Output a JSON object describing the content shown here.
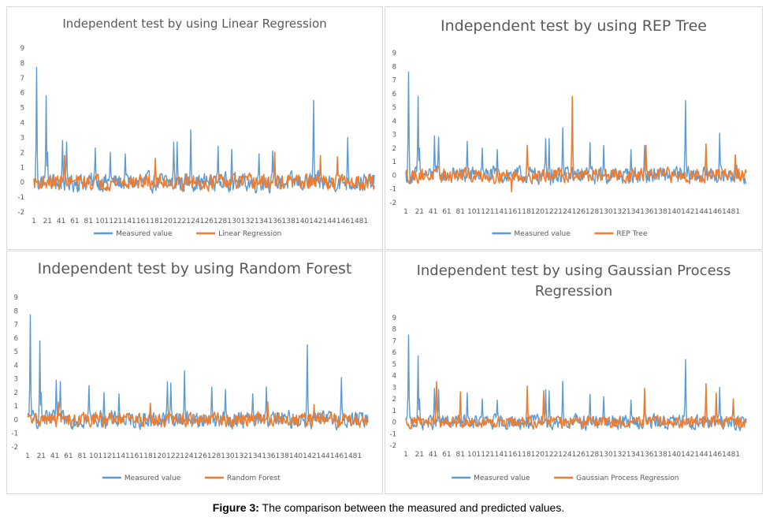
{
  "figure_caption": {
    "label": "Figure 3:",
    "text": " The comparison between the measured and predicted values."
  },
  "colors": {
    "measured": "#5B9BD5",
    "predicted": "#ED7D31"
  },
  "chart_data": [
    {
      "type": "line",
      "title": "Independent test by using Linear Regression",
      "ylim": [
        -2,
        9
      ],
      "yticks": [
        "-2",
        "-1",
        "0",
        "1",
        "2",
        "3",
        "4",
        "5",
        "6",
        "7",
        "8",
        "9"
      ],
      "xticks": [
        "1",
        "21",
        "41",
        "61",
        "81",
        "101",
        "121",
        "141",
        "161",
        "181",
        "201",
        "221",
        "241",
        "261",
        "281",
        "301",
        "321",
        "341",
        "361",
        "381",
        "401",
        "421",
        "441",
        "461",
        "481"
      ],
      "n_points": 500,
      "legend_position": "bottom",
      "grid": false,
      "series": [
        {
          "name": "Measured value",
          "color": "#5B9BD5",
          "peaks": [
            [
              4,
              7.7
            ],
            [
              18,
              5.8
            ],
            [
              42,
              2.8
            ],
            [
              48,
              2.7
            ],
            [
              90,
              2.3
            ],
            [
              205,
              2.7
            ],
            [
              210,
              2.7
            ],
            [
              230,
              3.5
            ],
            [
              270,
              2.4
            ],
            [
              350,
              2.1
            ],
            [
              410,
              5.5
            ],
            [
              460,
              3.0
            ],
            [
              20,
              2.0
            ],
            [
              112,
              2.0
            ],
            [
              134,
              1.9
            ],
            [
              290,
              2.2
            ],
            [
              330,
              1.9
            ]
          ]
        },
        {
          "name": "Linear Regression",
          "color": "#ED7D31",
          "peaks": [
            [
              45,
              1.8
            ],
            [
              178,
              1.6
            ],
            [
              353,
              2.0
            ],
            [
              420,
              1.8
            ],
            [
              445,
              1.7
            ]
          ]
        }
      ]
    },
    {
      "type": "line",
      "title": "Independent test by using REP Tree",
      "ylim": [
        -2,
        9
      ],
      "yticks": [
        "-2",
        "-1",
        "0",
        "1",
        "2",
        "3",
        "4",
        "5",
        "6",
        "7",
        "8",
        "9"
      ],
      "xticks": [
        "1",
        "21",
        "41",
        "61",
        "81",
        "101",
        "121",
        "141",
        "161",
        "181",
        "201",
        "221",
        "241",
        "261",
        "281",
        "301",
        "321",
        "341",
        "361",
        "381",
        "401",
        "421",
        "441",
        "461",
        "481"
      ],
      "n_points": 500,
      "legend_position": "bottom",
      "grid": false,
      "series": [
        {
          "name": "Measured value",
          "color": "#5B9BD5",
          "peaks": [
            [
              4,
              7.6
            ],
            [
              18,
              5.8
            ],
            [
              42,
              2.9
            ],
            [
              48,
              2.8
            ],
            [
              90,
              2.5
            ],
            [
              205,
              2.7
            ],
            [
              210,
              2.7
            ],
            [
              230,
              3.5
            ],
            [
              270,
              2.4
            ],
            [
              350,
              2.2
            ],
            [
              410,
              5.5
            ],
            [
              460,
              3.1
            ],
            [
              20,
              2.0
            ],
            [
              112,
              2.0
            ],
            [
              134,
              1.9
            ],
            [
              290,
              2.2
            ],
            [
              330,
              1.9
            ]
          ]
        },
        {
          "name": "REP Tree",
          "color": "#ED7D31",
          "peaks": [
            [
              244,
              5.8
            ],
            [
              178,
              2.2
            ],
            [
              352,
              2.2
            ],
            [
              440,
              2.3
            ],
            [
              483,
              1.5
            ],
            [
              155,
              -1.2
            ]
          ]
        }
      ]
    },
    {
      "type": "line",
      "title": "Independent test by using Random Forest",
      "ylim": [
        -2,
        9
      ],
      "yticks": [
        "-2",
        "-1",
        "0",
        "1",
        "2",
        "3",
        "4",
        "5",
        "6",
        "7",
        "8",
        "9"
      ],
      "xticks": [
        "1",
        "21",
        "41",
        "61",
        "81",
        "101",
        "121",
        "141",
        "161",
        "181",
        "201",
        "221",
        "241",
        "261",
        "281",
        "301",
        "321",
        "341",
        "361",
        "381",
        "401",
        "421",
        "441",
        "461",
        "481"
      ],
      "n_points": 500,
      "legend_position": "bottom",
      "grid": false,
      "series": [
        {
          "name": "Measured value",
          "color": "#5B9BD5",
          "peaks": [
            [
              4,
              7.7
            ],
            [
              18,
              5.8
            ],
            [
              42,
              2.9
            ],
            [
              48,
              2.8
            ],
            [
              90,
              2.5
            ],
            [
              205,
              2.8
            ],
            [
              210,
              2.7
            ],
            [
              230,
              3.6
            ],
            [
              270,
              2.4
            ],
            [
              350,
              2.4
            ],
            [
              410,
              5.5
            ],
            [
              460,
              3.1
            ],
            [
              20,
              2.0
            ],
            [
              112,
              2.0
            ],
            [
              134,
              1.9
            ],
            [
              290,
              2.2
            ],
            [
              330,
              1.9
            ]
          ]
        },
        {
          "name": "Random Forest",
          "color": "#ED7D31",
          "peaks": [
            [
              45,
              1.3
            ],
            [
              180,
              1.2
            ],
            [
              352,
              1.3
            ],
            [
              420,
              1.1
            ]
          ]
        }
      ]
    },
    {
      "type": "line",
      "title": "Independent test by using Gaussian Process Regression",
      "ylim": [
        -2,
        9
      ],
      "yticks": [
        "-2",
        "-1",
        "0",
        "1",
        "2",
        "3",
        "4",
        "5",
        "6",
        "7",
        "8",
        "9"
      ],
      "xticks": [
        "1",
        "21",
        "41",
        "61",
        "81",
        "101",
        "121",
        "141",
        "161",
        "181",
        "201",
        "221",
        "241",
        "261",
        "281",
        "301",
        "321",
        "341",
        "361",
        "381",
        "401",
        "421",
        "441",
        "461",
        "481"
      ],
      "n_points": 500,
      "legend_position": "bottom",
      "grid": false,
      "series": [
        {
          "name": "Measured value",
          "color": "#5B9BD5",
          "peaks": [
            [
              4,
              7.5
            ],
            [
              18,
              5.7
            ],
            [
              42,
              2.9
            ],
            [
              48,
              2.8
            ],
            [
              90,
              2.5
            ],
            [
              205,
              2.8
            ],
            [
              210,
              2.7
            ],
            [
              230,
              3.5
            ],
            [
              270,
              2.4
            ],
            [
              350,
              2.2
            ],
            [
              410,
              5.4
            ],
            [
              460,
              3.0
            ],
            [
              20,
              2.0
            ],
            [
              112,
              2.0
            ],
            [
              134,
              1.9
            ],
            [
              290,
              2.2
            ],
            [
              330,
              1.9
            ]
          ]
        },
        {
          "name": "Gaussian Process Regression",
          "color": "#ED7D31",
          "peaks": [
            [
              45,
              3.5
            ],
            [
              80,
              2.6
            ],
            [
              178,
              3.1
            ],
            [
              202,
              2.7
            ],
            [
              350,
              2.9
            ],
            [
              440,
              3.3
            ],
            [
              455,
              2.5
            ],
            [
              480,
              2.0
            ]
          ]
        }
      ]
    }
  ]
}
